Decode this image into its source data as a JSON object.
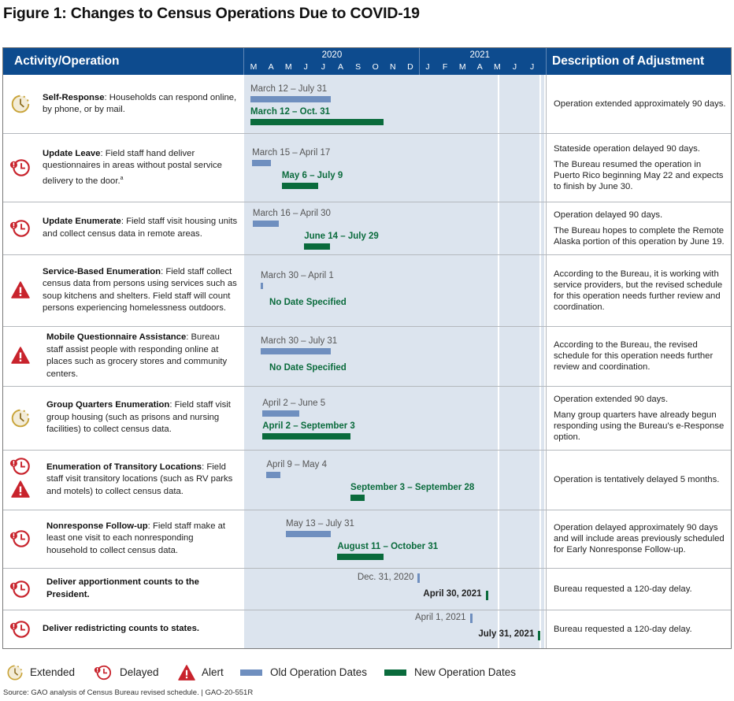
{
  "title": "Figure 1: Changes to Census Operations Due to COVID-19",
  "header": {
    "activity": "Activity/Operation",
    "description": "Description of Adjustment",
    "years": [
      {
        "label": "2020",
        "months": [
          "M",
          "A",
          "M",
          "J",
          "J",
          "A",
          "S",
          "O",
          "N",
          "D"
        ]
      },
      {
        "label": "2021",
        "months": [
          "J",
          "F",
          "M",
          "A",
          "M",
          "J",
          "J"
        ]
      }
    ]
  },
  "colors": {
    "header": "#0d4b8e",
    "old_bar": "#6f8fbf",
    "new_bar": "#0a6b3c",
    "extended_icon": "#c9a43a",
    "delayed_icon": "#c8232c",
    "alert_icon": "#c8232c",
    "chart_bg": "#dce4ee"
  },
  "rows": [
    {
      "icons": [
        "extended-icon"
      ],
      "name": "Self-Response",
      "text": ": Households can respond online, by phone, or by mail.",
      "old_label": "March 12 – July 31",
      "new_label": "March 12 – Oct. 31",
      "desc": [
        "Operation extended approximately 90 days."
      ]
    },
    {
      "icons": [
        "delayed-icon"
      ],
      "name": "Update Leave",
      "text": ": Field staff hand deliver questionnaires in areas without postal service delivery to the door.",
      "sup": "a",
      "old_label": "March 15 – April 17",
      "new_label": "May 6 – July 9",
      "desc": [
        "Stateside operation delayed 90 days.",
        "The Bureau resumed the operation in Puerto Rico beginning May 22 and expects to finish by June 30."
      ]
    },
    {
      "icons": [
        "delayed-icon"
      ],
      "name": "Update Enumerate",
      "text": ": Field staff visit housing units and collect census data in remote areas.",
      "old_label": "March 16 – April 30",
      "new_label": "June 14 – July 29",
      "desc": [
        "Operation delayed 90 days.",
        "The Bureau hopes to complete the Remote Alaska portion of this operation by June 19."
      ]
    },
    {
      "icons": [
        "alert-icon"
      ],
      "name": "Service-Based Enumeration",
      "text": ": Field staff collect census data from persons using services such as soup kitchens and shelters. Field staff will count persons experiencing homelessness outdoors.",
      "old_label": "March 30 – April 1",
      "new_label": "No Date Specified",
      "desc": [
        "According to the Bureau, it is working with service providers, but the revised schedule for this operation needs further review and coordination."
      ]
    },
    {
      "icons": [
        "alert-icon"
      ],
      "name": "Mobile Questionnaire Assistance",
      "text": ": Bureau staff assist people with responding online at places such as grocery stores and community centers.",
      "old_label": "March 30 – July 31",
      "new_label": "No Date Specified",
      "desc": [
        "According to the Bureau, the revised schedule for this operation needs further review and coordination."
      ]
    },
    {
      "icons": [
        "extended-icon"
      ],
      "name": "Group Quarters Enumeration",
      "text": ": Field staff visit group housing (such as prisons and nursing facilities) to collect census data.",
      "old_label": "April 2 – June 5",
      "new_label": "April 2 – September 3",
      "desc": [
        "Operation extended 90 days.",
        "Many group quarters have already begun responding using the Bureau's e-Response option."
      ]
    },
    {
      "icons": [
        "delayed-icon",
        "alert-icon"
      ],
      "name": "Enumeration of Transitory Locations",
      "text": ": Field staff visit transitory locations (such as RV parks and motels) to collect census data.",
      "old_label": "April 9 – May 4",
      "new_label": "September 3 – September 28",
      "desc": [
        "Operation is tentatively delayed 5 months."
      ]
    },
    {
      "icons": [
        "delayed-icon"
      ],
      "name": "Nonresponse Follow-up",
      "text": ": Field staff make at least one visit to each nonresponding household to collect census data.",
      "old_label": "May 13 – July 31",
      "new_label": "August 11 – October 31",
      "desc": [
        "Operation delayed approximately 90 days and will include areas previously scheduled for Early Nonresponse Follow-up."
      ]
    },
    {
      "icons": [
        "delayed-icon"
      ],
      "name": "Deliver apportionment counts to the President.",
      "text": "",
      "old_label": "Dec. 31, 2020",
      "new_label": "April 30, 2021",
      "desc": [
        "Bureau requested a 120-day delay."
      ]
    },
    {
      "icons": [
        "delayed-icon"
      ],
      "name": "Deliver redistricting counts to states.",
      "text": "",
      "old_label": "April 1, 2021",
      "new_label": "July 31, 2021",
      "desc": [
        "Bureau requested a 120-day delay."
      ]
    }
  ],
  "legend": {
    "extended": "Extended",
    "delayed": "Delayed",
    "alert": "Alert",
    "old": "Old Operation Dates",
    "new": "New Operation Dates"
  },
  "source": "Source: GAO analysis of Census Bureau revised schedule. | GAO-20-551R",
  "chart_data": {
    "type": "gantt",
    "title": "Figure 1: Changes to Census Operations Due to COVID-19",
    "x_range": [
      "2020-03-01",
      "2021-07-31"
    ],
    "x_ticks": [
      "M",
      "A",
      "M",
      "J",
      "J",
      "A",
      "S",
      "O",
      "N",
      "D",
      "J",
      "F",
      "M",
      "A",
      "M",
      "J",
      "J"
    ],
    "x_groups": [
      "2020",
      "2021"
    ],
    "reference_lines": [
      "2021-04-30",
      "2021-07-31"
    ],
    "series": [
      {
        "name": "Old Operation Dates",
        "color": "#6f8fbf"
      },
      {
        "name": "New Operation Dates",
        "color": "#0a6b3c"
      }
    ],
    "tasks": [
      {
        "name": "Self-Response",
        "status": "Extended",
        "old": [
          "2020-03-12",
          "2020-07-31"
        ],
        "new": [
          "2020-03-12",
          "2020-10-31"
        ]
      },
      {
        "name": "Update Leave",
        "status": "Delayed",
        "old": [
          "2020-03-15",
          "2020-04-17"
        ],
        "new": [
          "2020-05-06",
          "2020-07-09"
        ]
      },
      {
        "name": "Update Enumerate",
        "status": "Delayed",
        "old": [
          "2020-03-16",
          "2020-04-30"
        ],
        "new": [
          "2020-06-14",
          "2020-07-29"
        ]
      },
      {
        "name": "Service-Based Enumeration",
        "status": "Alert",
        "old": [
          "2020-03-30",
          "2020-04-01"
        ],
        "new": null
      },
      {
        "name": "Mobile Questionnaire Assistance",
        "status": "Alert",
        "old": [
          "2020-03-30",
          "2020-07-31"
        ],
        "new": null
      },
      {
        "name": "Group Quarters Enumeration",
        "status": "Extended",
        "old": [
          "2020-04-02",
          "2020-06-05"
        ],
        "new": [
          "2020-04-02",
          "2020-09-03"
        ]
      },
      {
        "name": "Enumeration of Transitory Locations",
        "status": "Delayed, Alert",
        "old": [
          "2020-04-09",
          "2020-05-04"
        ],
        "new": [
          "2020-09-03",
          "2020-09-28"
        ]
      },
      {
        "name": "Nonresponse Follow-up",
        "status": "Delayed",
        "old": [
          "2020-05-13",
          "2020-07-31"
        ],
        "new": [
          "2020-08-11",
          "2020-10-31"
        ]
      },
      {
        "name": "Deliver apportionment counts to the President",
        "status": "Delayed",
        "old": [
          "2020-12-31",
          "2020-12-31"
        ],
        "new": [
          "2021-04-30",
          "2021-04-30"
        ]
      },
      {
        "name": "Deliver redistricting counts to states",
        "status": "Delayed",
        "old": [
          "2021-04-01",
          "2021-04-01"
        ],
        "new": [
          "2021-07-31",
          "2021-07-31"
        ]
      }
    ]
  }
}
